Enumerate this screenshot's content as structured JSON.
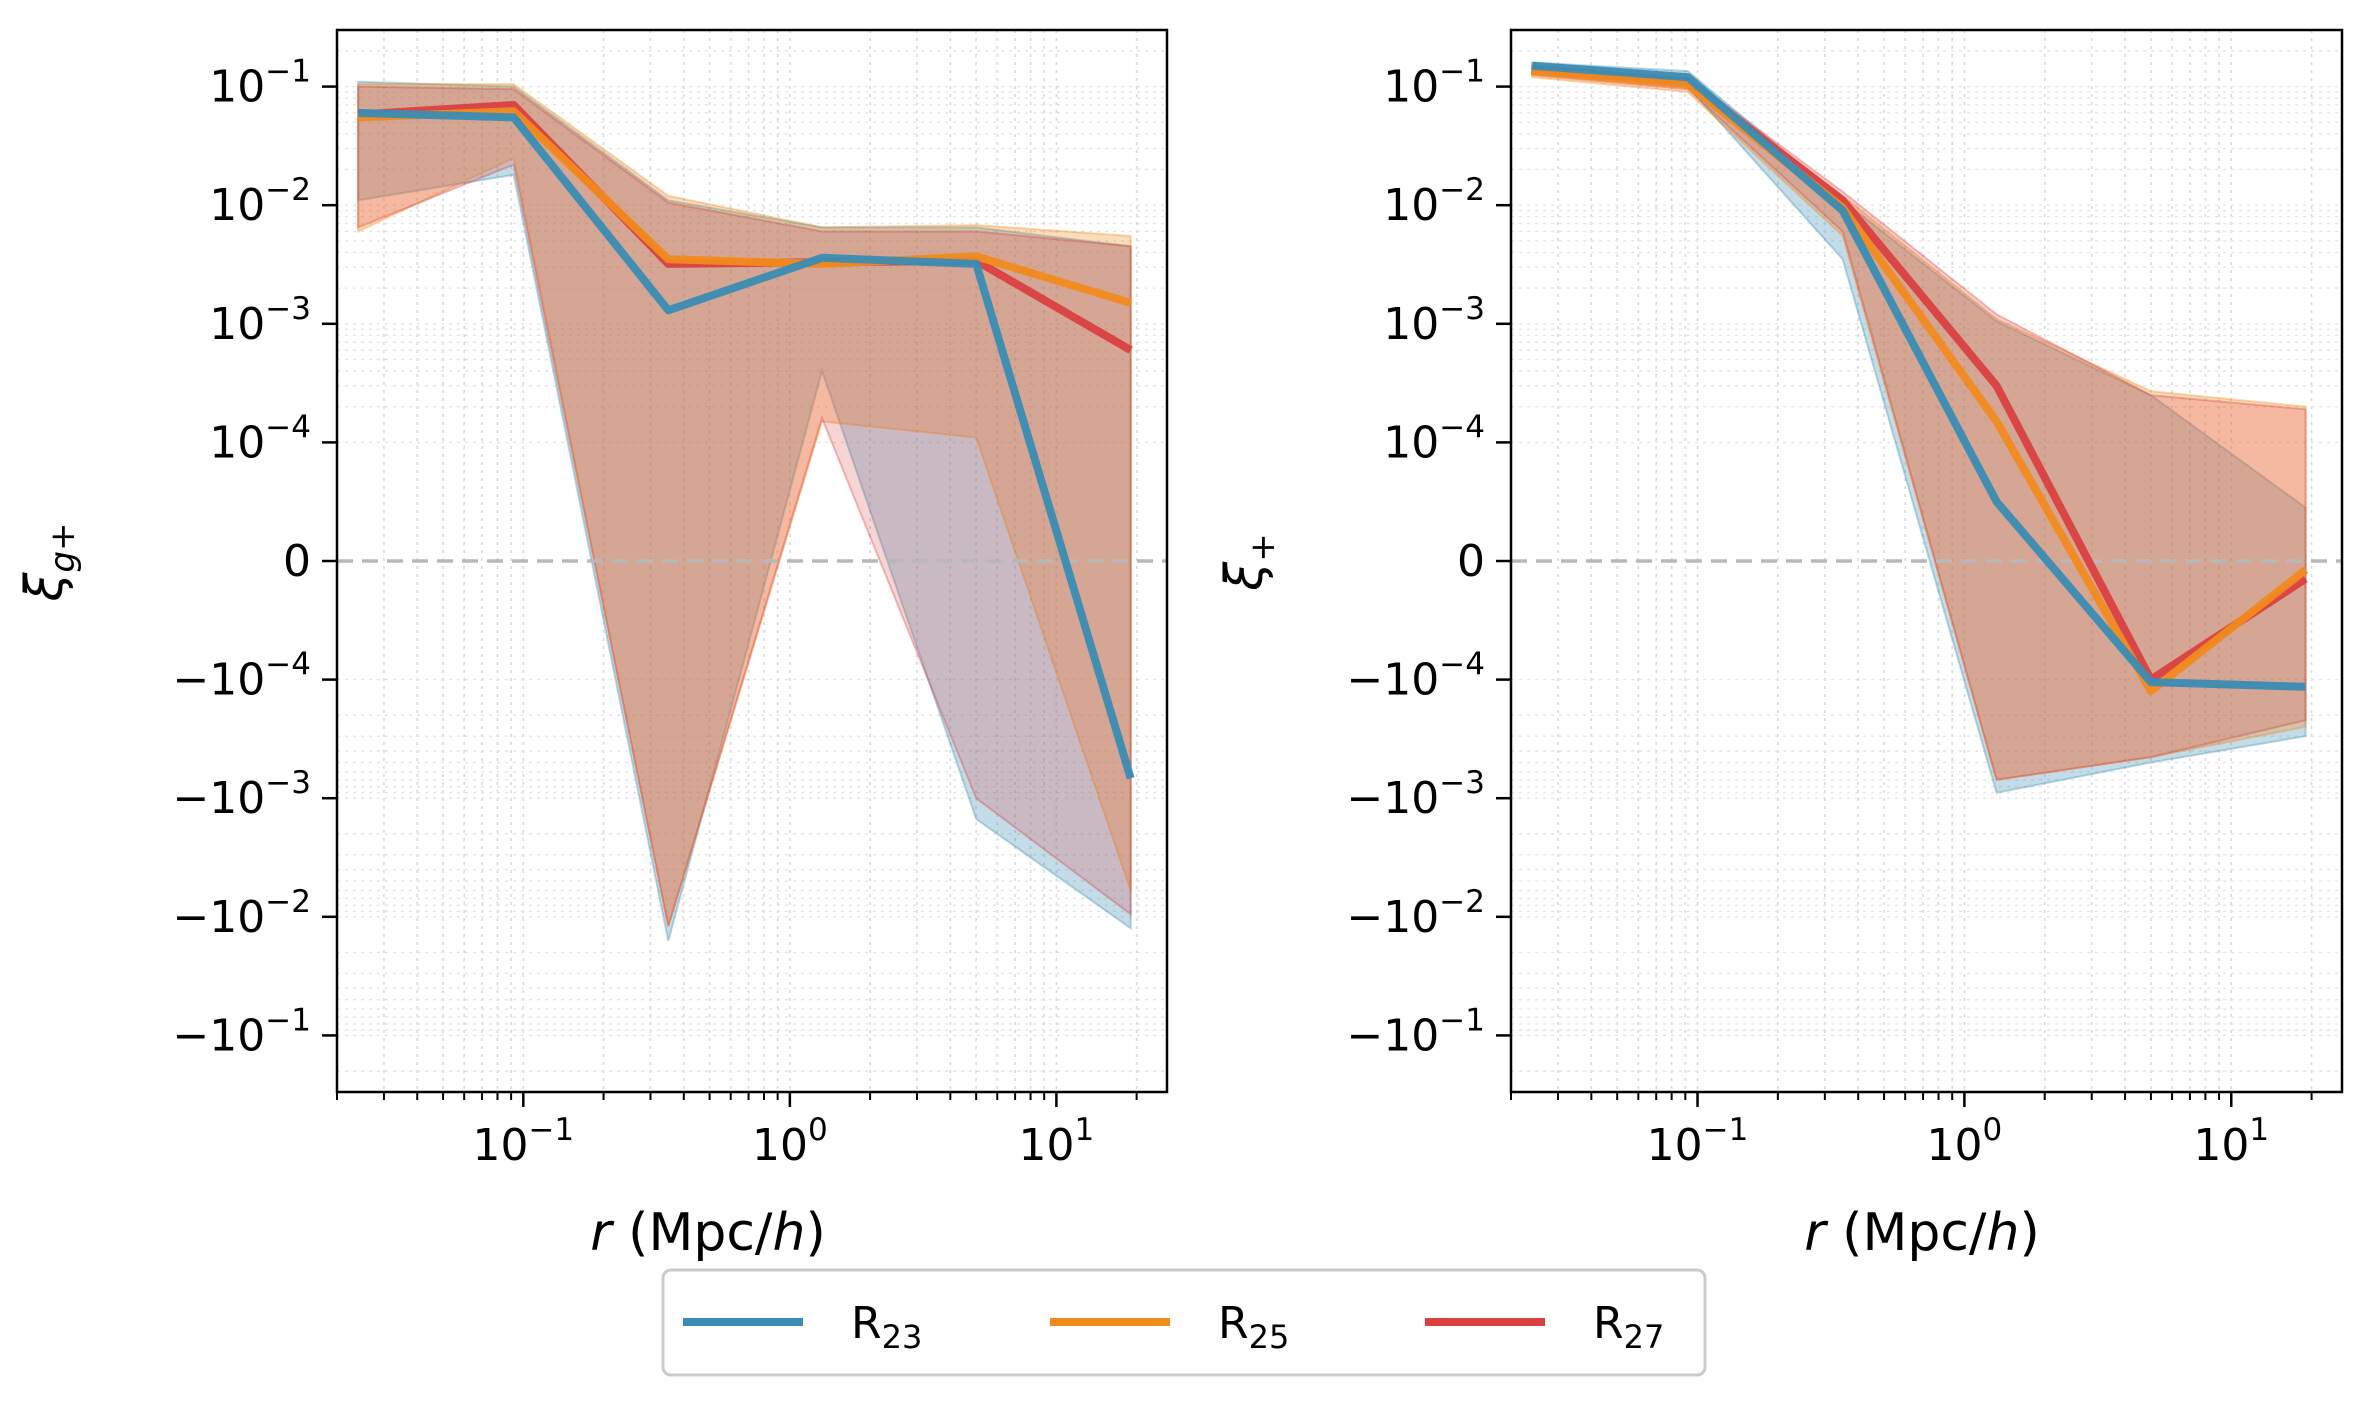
{
  "chart_data": [
    {
      "type": "line",
      "panel": "left",
      "xlabel": "r (Mpc/h)",
      "ylabel": "ξg+",
      "xscale": "log",
      "yscale": "symlog",
      "linthresh": 0.0001,
      "xlim": [
        0.02,
        26
      ],
      "ylim": [
        -0.3,
        0.3
      ],
      "xticks": [
        0.1,
        1,
        10
      ],
      "xtick_labels": [
        {
          "base": "10",
          "exp": "−1"
        },
        {
          "base": "10",
          "exp": "0"
        },
        {
          "base": "10",
          "exp": "1"
        }
      ],
      "yticks": [
        0.1,
        0.01,
        0.001,
        0.0001,
        0,
        -0.0001,
        -0.001,
        -0.01,
        -0.1
      ],
      "ytick_labels": [
        {
          "base": "10",
          "exp": "−1"
        },
        {
          "base": "10",
          "exp": "−2"
        },
        {
          "base": "10",
          "exp": "−3"
        },
        {
          "base": "10",
          "exp": "−4"
        },
        {
          "base": "0",
          "exp": ""
        },
        {
          "base": "−10",
          "exp": "−4"
        },
        {
          "base": "−10",
          "exp": "−3"
        },
        {
          "base": "−10",
          "exp": "−2"
        },
        {
          "base": "−10",
          "exp": "−1"
        }
      ],
      "zero_line": true,
      "grid": true,
      "x": [
        0.024,
        0.092,
        0.35,
        1.32,
        5.0,
        19.0
      ],
      "series": [
        {
          "name": "R23",
          "color": "#3a8cb4",
          "values": [
            0.06,
            0.055,
            0.0013,
            0.0036,
            0.0032,
            -0.00068
          ],
          "band_hi": [
            0.11,
            0.1,
            0.011,
            0.0065,
            0.0065,
            0.0045
          ],
          "band_lo": [
            0.011,
            0.018,
            -0.016,
            0.0004,
            -0.0015,
            -0.0125
          ]
        },
        {
          "name": "R25",
          "color": "#f28a1e",
          "values": [
            0.055,
            0.062,
            0.0035,
            0.0032,
            0.0037,
            0.0015
          ],
          "band_hi": [
            0.105,
            0.105,
            0.012,
            0.0065,
            0.0068,
            0.0055
          ],
          "band_lo": [
            0.006,
            0.025,
            -0.012,
            0.00015,
            0.00011,
            -0.006
          ]
        },
        {
          "name": "R27",
          "color": "#d94040",
          "values": [
            0.058,
            0.07,
            0.0032,
            0.0033,
            0.0034,
            0.0006
          ],
          "band_hi": [
            0.1,
            0.095,
            0.0105,
            0.006,
            0.006,
            0.0045
          ],
          "band_lo": [
            0.0065,
            0.022,
            -0.012,
            0.00016,
            -0.001,
            -0.0095
          ]
        }
      ]
    },
    {
      "type": "line",
      "panel": "right",
      "xlabel": "r (Mpc/h)",
      "ylabel": "ξ+",
      "xscale": "log",
      "yscale": "symlog",
      "linthresh": 0.0001,
      "xlim": [
        0.02,
        26
      ],
      "ylim": [
        -0.3,
        0.3
      ],
      "xticks": [
        0.1,
        1,
        10
      ],
      "xtick_labels": [
        {
          "base": "10",
          "exp": "−1"
        },
        {
          "base": "10",
          "exp": "0"
        },
        {
          "base": "10",
          "exp": "1"
        }
      ],
      "yticks": [
        0.1,
        0.01,
        0.001,
        0.0001,
        0,
        -0.0001,
        -0.001,
        -0.01,
        -0.1
      ],
      "ytick_labels": [
        {
          "base": "10",
          "exp": "−1"
        },
        {
          "base": "10",
          "exp": "−2"
        },
        {
          "base": "10",
          "exp": "−3"
        },
        {
          "base": "10",
          "exp": "−4"
        },
        {
          "base": "0",
          "exp": ""
        },
        {
          "base": "−10",
          "exp": "−4"
        },
        {
          "base": "−10",
          "exp": "−3"
        },
        {
          "base": "−10",
          "exp": "−2"
        },
        {
          "base": "−10",
          "exp": "−1"
        }
      ],
      "zero_line": true,
      "grid": true,
      "x": [
        0.024,
        0.092,
        0.35,
        1.32,
        5.0,
        19.0
      ],
      "series": [
        {
          "name": "R23",
          "color": "#3a8cb4",
          "values": [
            0.15,
            0.12,
            0.009,
            5e-05,
            -0.000105,
            -0.000115
          ],
          "band_hi": [
            0.16,
            0.135,
            0.011,
            0.00105,
            0.00025,
            4.5e-05
          ],
          "band_lo": [
            0.13,
            0.1,
            0.0035,
            -0.0009,
            -0.0005,
            -0.0003
          ]
        },
        {
          "name": "R25",
          "color": "#f28a1e",
          "values": [
            0.135,
            0.105,
            0.0095,
            0.00015,
            -0.000125,
            -7.5e-06
          ],
          "band_hi": [
            0.145,
            0.115,
            0.012,
            0.0011,
            0.00027,
            0.0002
          ],
          "band_lo": [
            0.12,
            0.09,
            0.0055,
            -0.0007,
            -0.00045,
            -0.00025
          ]
        },
        {
          "name": "R27",
          "color": "#d94040",
          "values": [
            0.14,
            0.11,
            0.011,
            0.0003,
            -0.0001,
            -1.5e-05
          ],
          "band_hi": [
            0.15,
            0.12,
            0.013,
            0.0012,
            0.00025,
            0.00019
          ],
          "band_lo": [
            0.125,
            0.095,
            0.006,
            -0.0007,
            -0.00045,
            -0.00022
          ]
        }
      ]
    }
  ],
  "legend": {
    "placement": "bottom-center",
    "entries": [
      {
        "base": "R",
        "sub": "23",
        "color": "#3a8cb4"
      },
      {
        "base": "R",
        "sub": "25",
        "color": "#f28a1e"
      },
      {
        "base": "R",
        "sub": "27",
        "color": "#d94040"
      }
    ]
  },
  "axis_texts": {
    "xlabel_italic": "r",
    "xlabel_rest_open": " (Mpc/",
    "xlabel_h": "h",
    "xlabel_close": ")",
    "left_ylabel_main": "ξ",
    "left_ylabel_sub": "g+",
    "right_ylabel_main": "ξ",
    "right_ylabel_sub": "+"
  }
}
